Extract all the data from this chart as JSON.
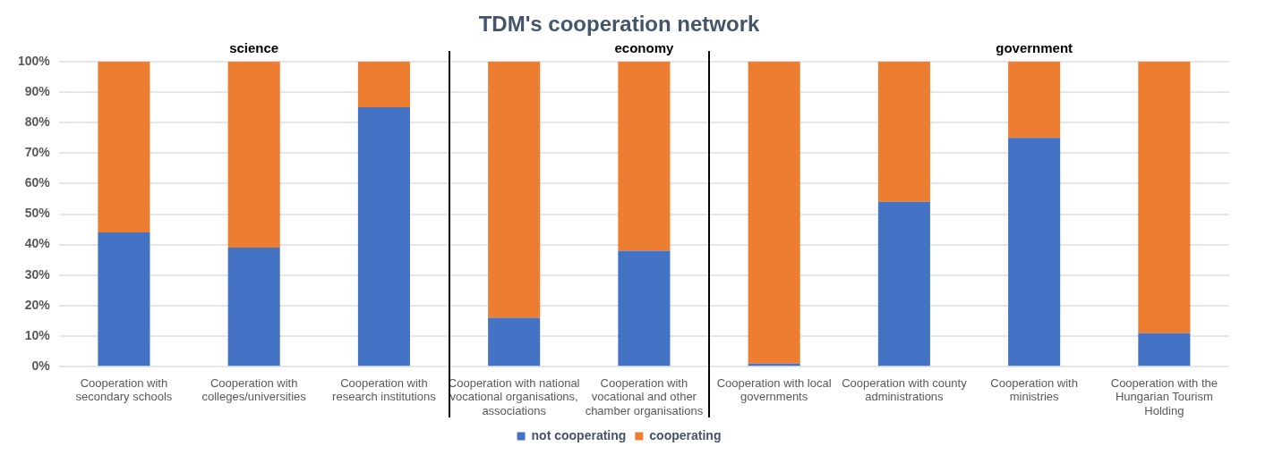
{
  "chart_data": {
    "type": "bar",
    "title": "TDM's cooperation network",
    "categories": [
      "Cooperation with secondary schools",
      "Cooperation with colleges/universities",
      "Cooperation with research institutions",
      "Cooperation with national vocational organisations, associations",
      "Cooperation with vocational and other chamber organisations",
      "Cooperation with local governments",
      "Cooperation with county administrations",
      "Cooperation with ministries",
      "Cooperation with the Hungarian Tourism Holding"
    ],
    "series": [
      {
        "name": "not cooperating",
        "color": "#4472c4",
        "values": [
          44,
          39,
          85,
          16,
          38,
          1,
          54,
          75,
          11
        ]
      },
      {
        "name": "cooperating",
        "color": "#ed7d31",
        "values": [
          56,
          61,
          15,
          84,
          62,
          99,
          46,
          25,
          89
        ]
      }
    ],
    "stacked": true,
    "ylim": [
      0,
      100
    ],
    "yticks": [
      {
        "value": 0,
        "label": "0%"
      },
      {
        "value": 10,
        "label": "10%"
      },
      {
        "value": 20,
        "label": "20%"
      },
      {
        "value": 30,
        "label": "30%"
      },
      {
        "value": 40,
        "label": "40%"
      },
      {
        "value": 50,
        "label": "50%"
      },
      {
        "value": 60,
        "label": "60%"
      },
      {
        "value": 70,
        "label": "70%"
      },
      {
        "value": 80,
        "label": "80%"
      },
      {
        "value": 90,
        "label": "90%"
      },
      {
        "value": 100,
        "label": "100%"
      }
    ],
    "grid": "y",
    "legend": "bottom",
    "annotations": [
      {
        "text": "science",
        "x": "Cooperation with colleges/universities",
        "y": 100
      },
      {
        "text": "economy",
        "x": "Cooperation with vocational and other chamber organisations",
        "y": 100
      },
      {
        "text": "government",
        "x": "Cooperation with ministries",
        "y": 100
      }
    ]
  }
}
